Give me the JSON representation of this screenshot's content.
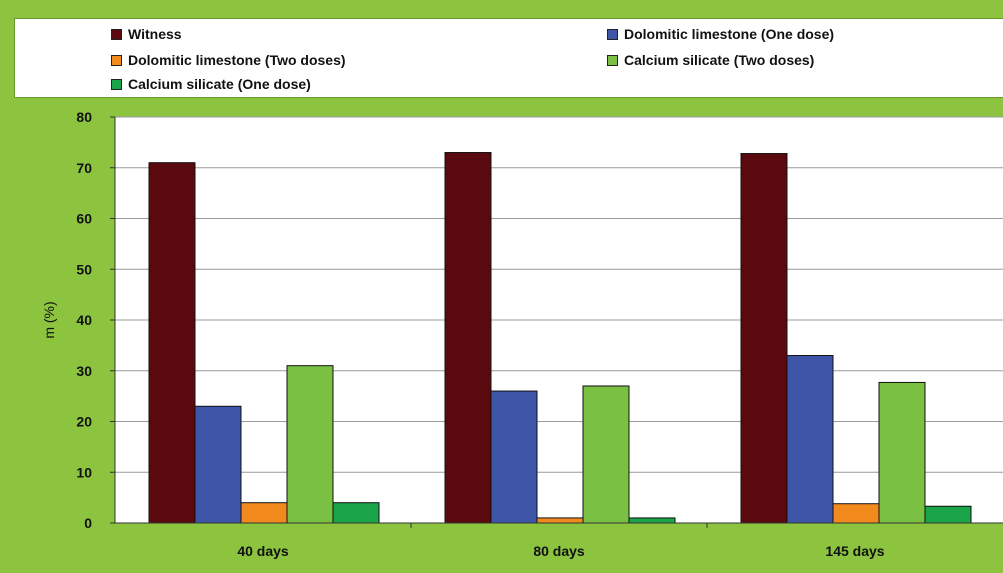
{
  "chart_data": {
    "type": "bar",
    "title": "",
    "xlabel": "",
    "ylabel": "m (%)",
    "ylim": [
      0,
      80
    ],
    "yticks": [
      0,
      10,
      20,
      30,
      40,
      50,
      60,
      70,
      80
    ],
    "grid": true,
    "legend_position": "top",
    "categories": [
      "40 days",
      "80 days",
      "145 days"
    ],
    "series": [
      {
        "name": "Witness",
        "color": "#5a0a0e",
        "values": [
          71,
          73,
          72.8
        ]
      },
      {
        "name": "Dolomitic limestone (One dose)",
        "color": "#3f56a8",
        "values": [
          23,
          26,
          33
        ]
      },
      {
        "name": "Dolomitic limestone (Two doses)",
        "color": "#f28a1e",
        "values": [
          4,
          1,
          3.8
        ]
      },
      {
        "name": "Calcium silicate (Two doses)",
        "color": "#7ac143",
        "values": [
          31,
          27,
          27.7
        ]
      },
      {
        "name": "Calcium silicate (One dose)",
        "color": "#1aa54a",
        "values": [
          4,
          1,
          3.3
        ]
      }
    ]
  }
}
